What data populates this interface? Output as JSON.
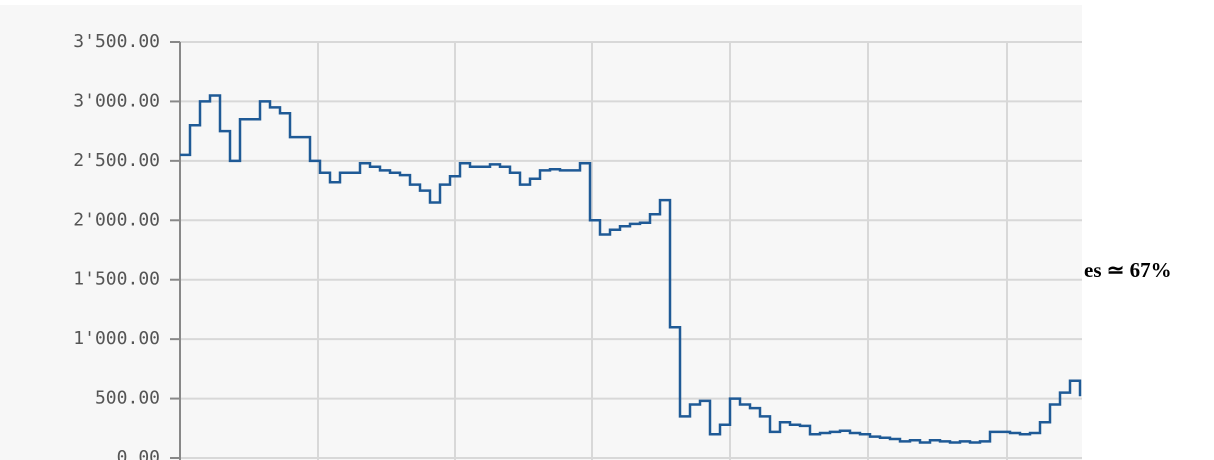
{
  "chart_data": {
    "type": "line",
    "annotation": "es ≃ 67%",
    "ylim": [
      0,
      3500
    ],
    "yticks": [
      {
        "value": 0,
        "label": "0.00"
      },
      {
        "value": 500,
        "label": "500.00"
      },
      {
        "value": 1000,
        "label": "1'000.00"
      },
      {
        "value": 1500,
        "label": "1'500.00"
      },
      {
        "value": 2000,
        "label": "2'000.00"
      },
      {
        "value": 2500,
        "label": "2'500.00"
      },
      {
        "value": 3000,
        "label": "3'000.00"
      },
      {
        "value": 3500,
        "label": "3'500.00"
      }
    ],
    "grid": true,
    "color": "#1f5a96",
    "values": [
      2550,
      2800,
      3000,
      3050,
      2750,
      2500,
      2850,
      2850,
      3000,
      2950,
      2900,
      2700,
      2700,
      2500,
      2400,
      2320,
      2400,
      2400,
      2480,
      2450,
      2420,
      2400,
      2380,
      2300,
      2250,
      2150,
      2300,
      2370,
      2480,
      2450,
      2450,
      2470,
      2450,
      2400,
      2300,
      2350,
      2420,
      2430,
      2420,
      2420,
      2480,
      2000,
      1880,
      1920,
      1950,
      1970,
      1980,
      2050,
      2170,
      1100,
      350,
      450,
      480,
      200,
      280,
      500,
      450,
      420,
      350,
      220,
      300,
      280,
      270,
      200,
      210,
      220,
      230,
      210,
      200,
      180,
      170,
      160,
      140,
      150,
      130,
      150,
      140,
      130,
      140,
      130,
      140,
      220,
      220,
      210,
      200,
      210,
      300,
      450,
      550,
      650,
      520
    ]
  }
}
